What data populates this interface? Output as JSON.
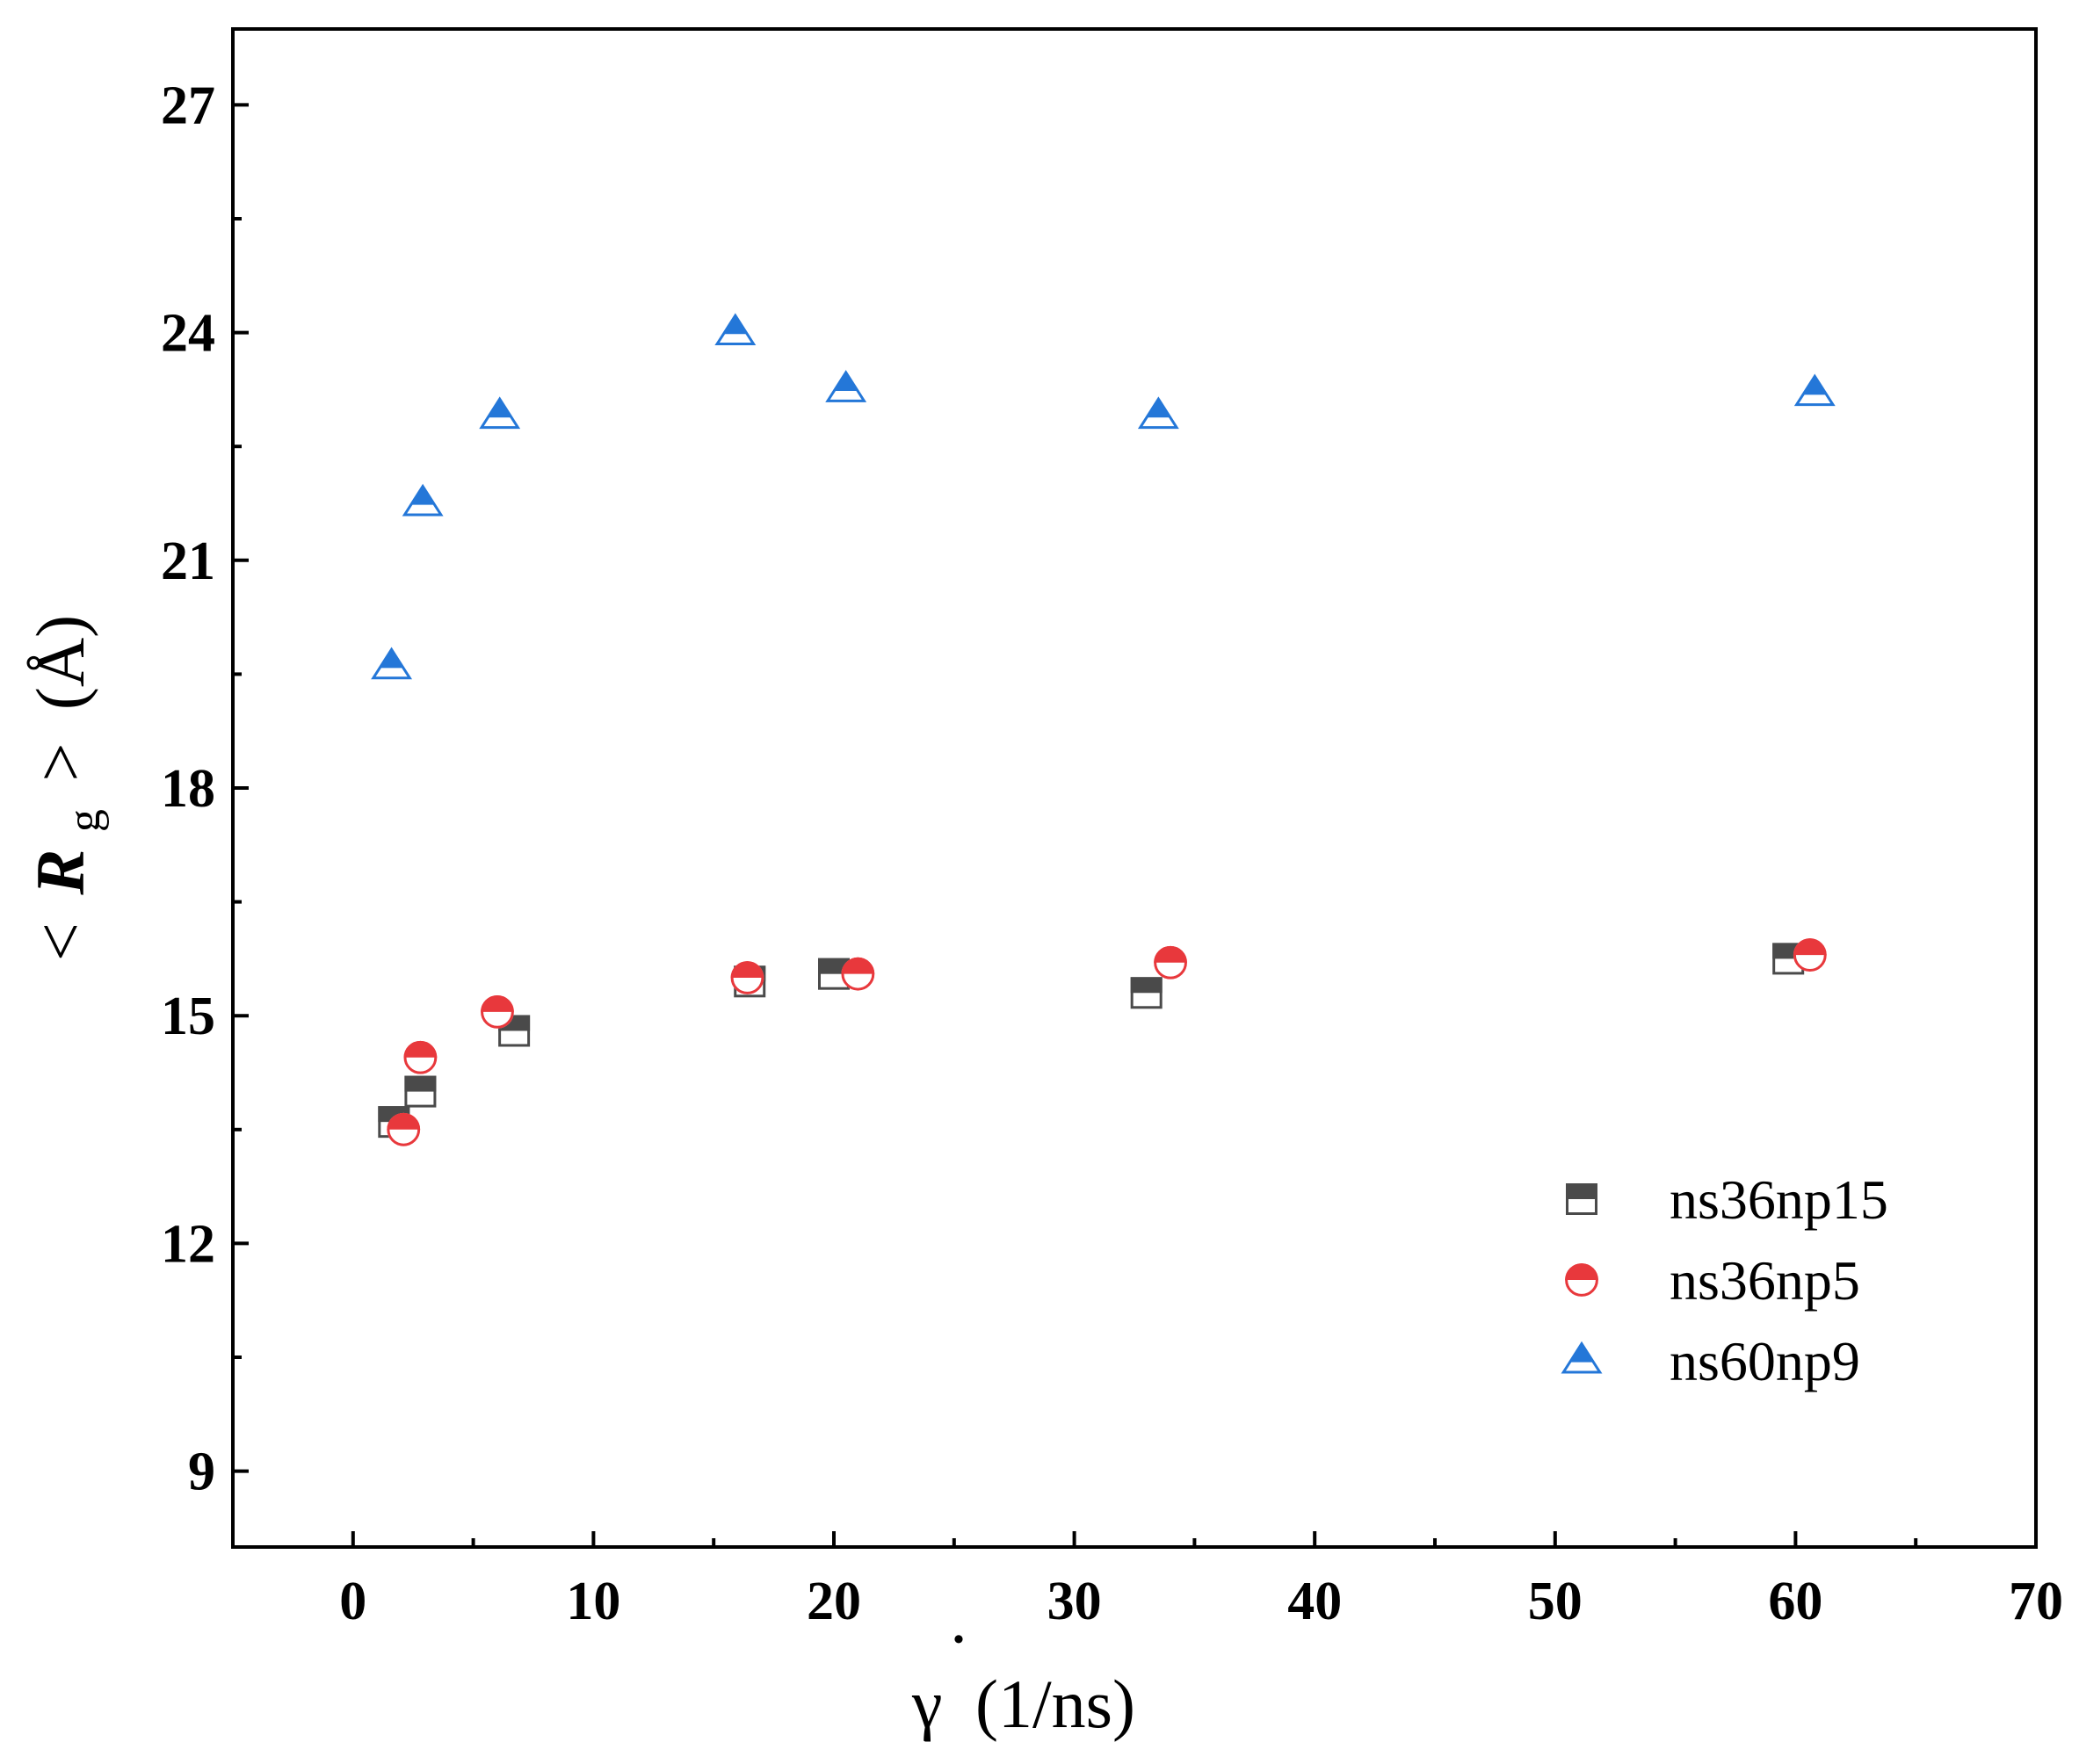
{
  "chart_data": {
    "type": "scatter",
    "title": "",
    "xlabel": {
      "symbol": "γ",
      "overdot": "·",
      "unit": "(1/ns)"
    },
    "ylabel": {
      "open": "<",
      "symbol": "R",
      "subscript": "g",
      "close": ">",
      "unit": "(Å)"
    },
    "xlim": [
      -5,
      70
    ],
    "ylim": [
      8,
      28
    ],
    "xticks": [
      0,
      10,
      20,
      30,
      40,
      50,
      60,
      70
    ],
    "yticks": [
      9,
      12,
      15,
      18,
      21,
      24,
      27
    ],
    "xtick_labels": [
      "0",
      "10",
      "20",
      "30",
      "40",
      "50",
      "60",
      "70"
    ],
    "ytick_labels": [
      "9",
      "12",
      "15",
      "18",
      "21",
      "24",
      "27"
    ],
    "legend_position": "bottom-right",
    "series": [
      {
        "name": "ns36np15",
        "marker": "square-half",
        "color": "#4a4a4a",
        "x": [
          1.7,
          2.8,
          6.7,
          16.5,
          20.0,
          33.0,
          59.7
        ],
        "y": [
          13.6,
          14.0,
          14.8,
          15.45,
          15.55,
          15.3,
          15.75
        ]
      },
      {
        "name": "ns36np5",
        "marker": "circle-half",
        "color": "#e8383c",
        "x": [
          2.1,
          2.8,
          6.0,
          16.4,
          21.0,
          34.0,
          60.6
        ],
        "y": [
          13.5,
          14.45,
          15.05,
          15.5,
          15.55,
          15.7,
          15.8
        ]
      },
      {
        "name": "ns60np9",
        "marker": "triangle-half",
        "color": "#2477d8",
        "x": [
          1.6,
          2.9,
          6.1,
          15.9,
          20.5,
          33.5,
          60.8
        ],
        "y": [
          19.6,
          21.75,
          22.9,
          24.0,
          23.25,
          22.9,
          23.2
        ]
      }
    ]
  }
}
